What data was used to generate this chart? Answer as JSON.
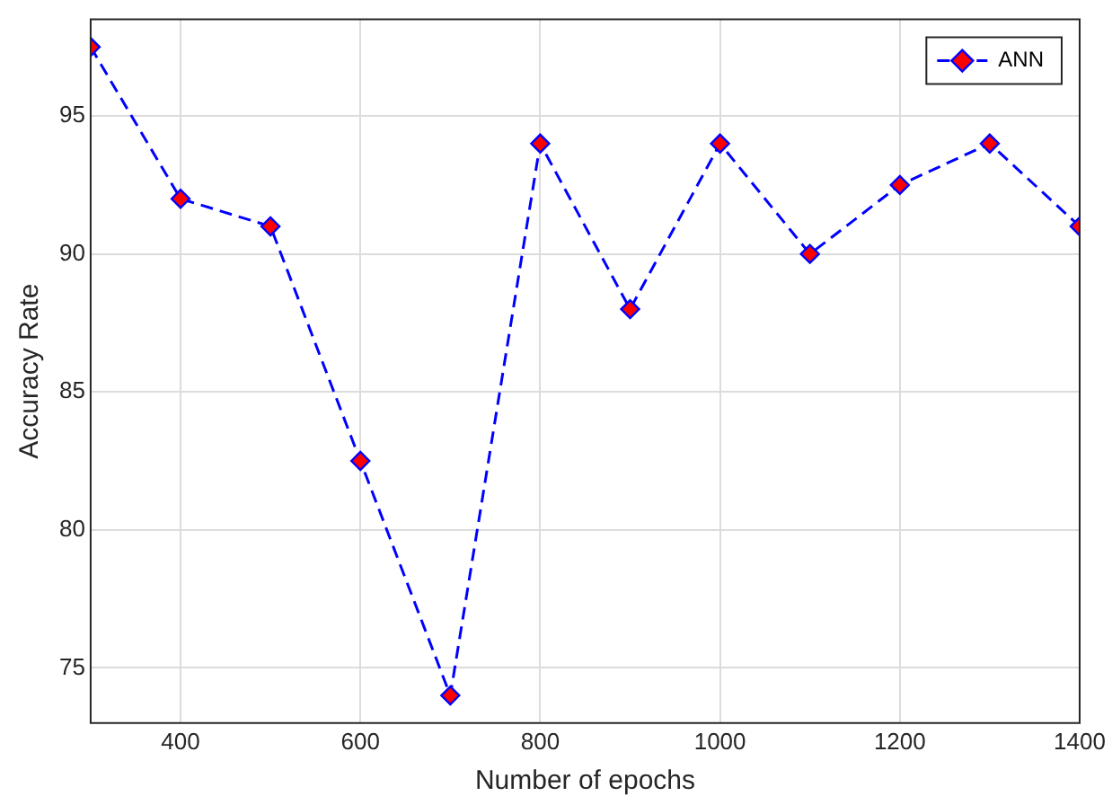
{
  "chart_data": {
    "type": "line",
    "xlabel": "Number of epochs",
    "ylabel": "Accuracy Rate",
    "x": [
      300,
      400,
      500,
      600,
      700,
      800,
      900,
      1000,
      1100,
      1200,
      1300,
      1400
    ],
    "series": [
      {
        "name": "ANN",
        "color": "#0000ff",
        "values": [
          97.5,
          92,
          91,
          82.5,
          74,
          94,
          88,
          94,
          90,
          92.5,
          94,
          91
        ]
      }
    ],
    "xlim": [
      300,
      1400
    ],
    "xticks": [
      400,
      600,
      800,
      1000,
      1200,
      1400
    ],
    "ylim": [
      73,
      98.5
    ],
    "yticks": [
      75,
      80,
      85,
      90,
      95
    ],
    "grid": true,
    "legend": "top right",
    "marker": "diamond",
    "line_style": "dashed"
  }
}
